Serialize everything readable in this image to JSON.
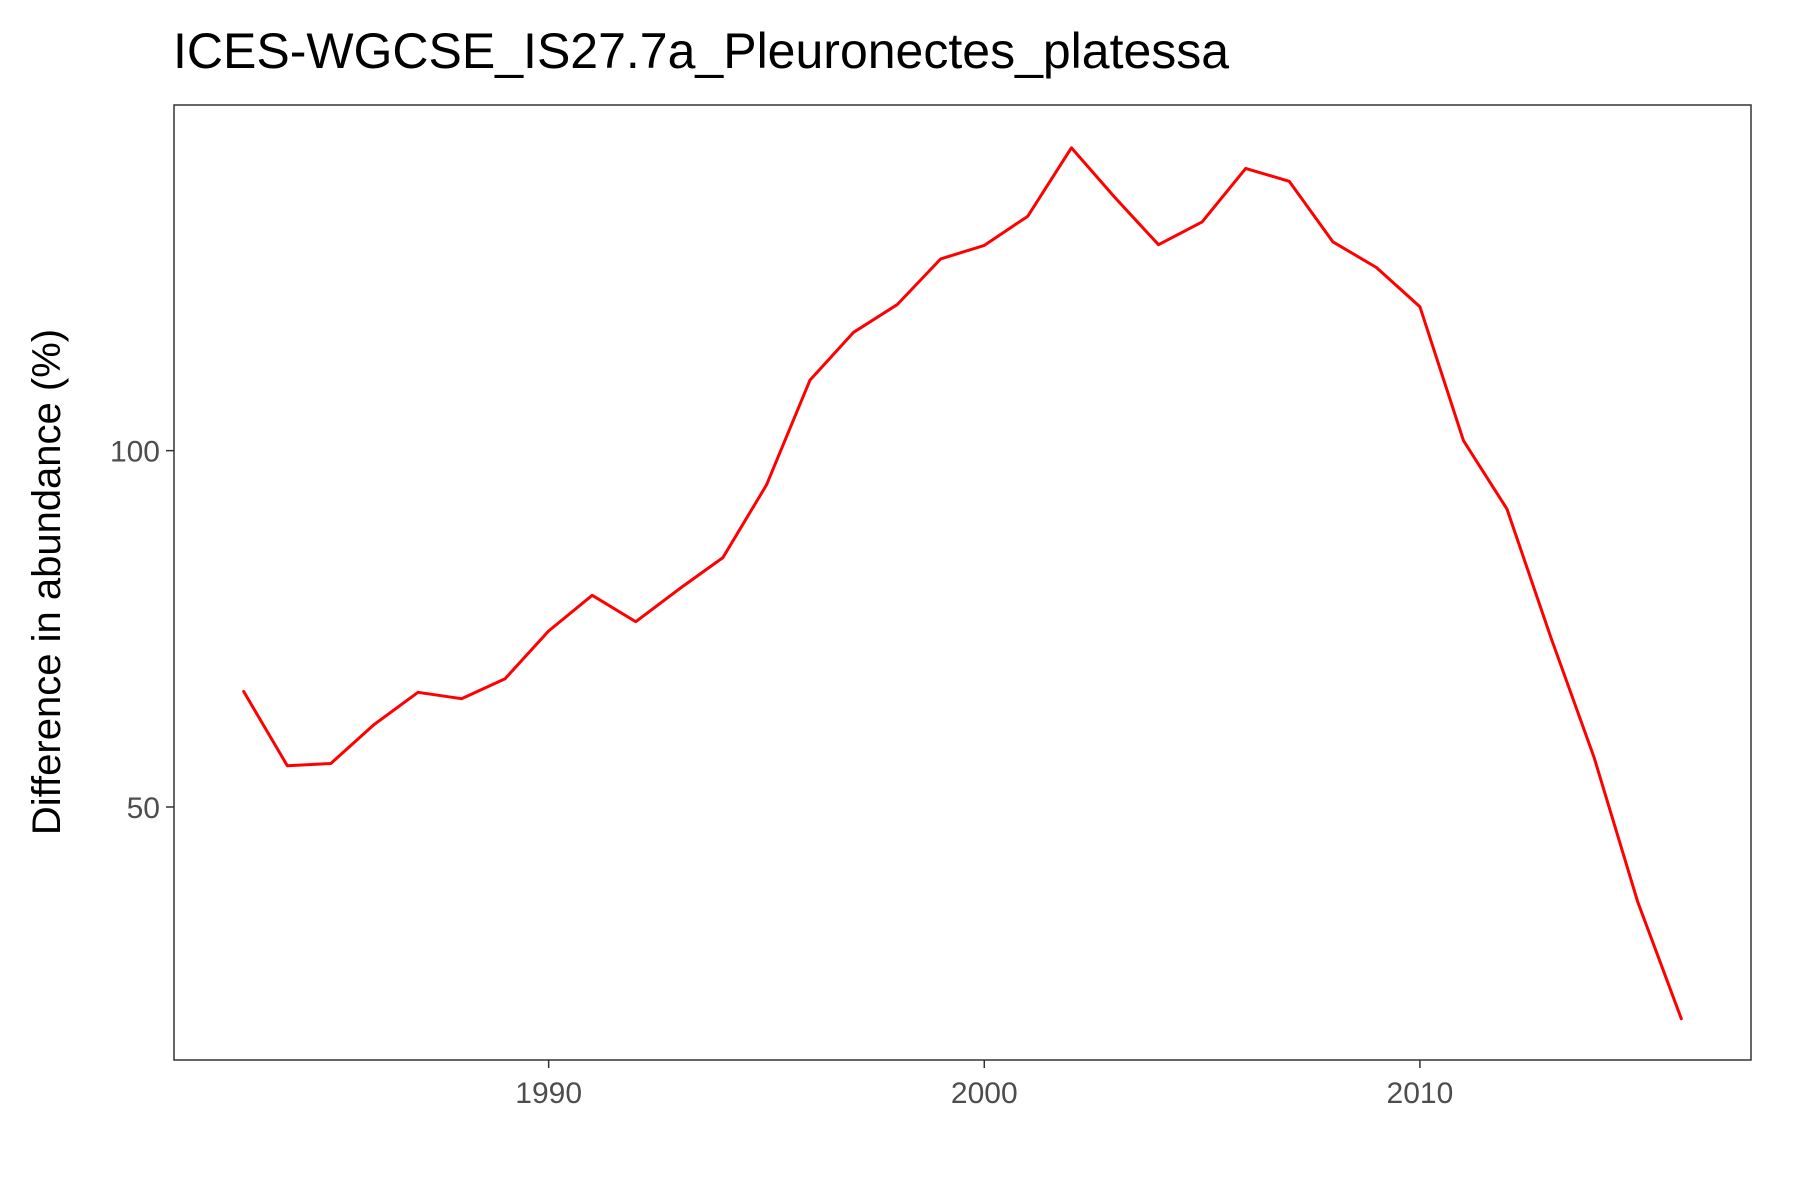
{
  "chart_data": {
    "type": "line",
    "title": "ICES-WGCSE_IS27.7a_Pleuronectes_platessa",
    "xlabel": "",
    "ylabel": "Difference in abundance (%)",
    "xlim": [
      1981.4,
      2017.6
    ],
    "ylim": [
      14.5,
      148.5
    ],
    "x_ticks": [
      1990,
      2000,
      2010
    ],
    "y_ticks": [
      50,
      100
    ],
    "grid": false,
    "series": [
      {
        "color": "#ff0000",
        "x": [
          1983,
          1984,
          1985,
          1986,
          1987,
          1988,
          1989,
          1990,
          1991,
          1992,
          1993,
          1994,
          1995,
          1996,
          1997,
          1998,
          1999,
          2000,
          2001,
          2002,
          2003,
          2004,
          2005,
          2006,
          2007,
          2008,
          2009,
          2010,
          2011,
          2012,
          2013,
          2014,
          2015,
          2016
        ],
        "y": [
          66.2,
          55.8,
          56.1,
          61.6,
          66.1,
          65.2,
          68.0,
          74.7,
          79.7,
          76.0,
          80.6,
          85.0,
          95.2,
          109.9,
          116.6,
          120.5,
          126.9,
          128.8,
          132.9,
          142.5,
          135.5,
          128.9,
          132.1,
          139.6,
          137.8,
          129.3,
          125.7,
          120.2,
          101.4,
          91.8,
          73.9,
          56.9,
          36.7,
          20.3
        ]
      }
    ]
  }
}
